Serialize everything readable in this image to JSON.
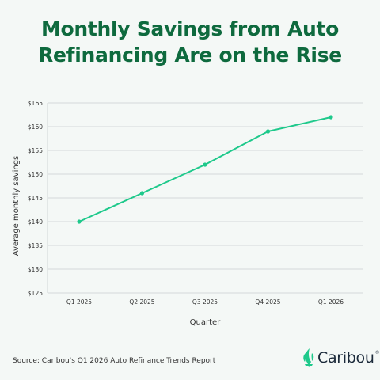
{
  "title": {
    "line1": "Monthly Savings from Auto",
    "line2": "Refinancing Are on the Rise"
  },
  "source": "Source: Caribou's Q1 2026 Auto Refinance Trends Report",
  "brand": {
    "name": "Caribou",
    "mark": "®"
  },
  "colors": {
    "title": "#0e6a3e",
    "line": "#1ec98b",
    "grid": "#c8cdd0",
    "brand_icon": "#1ec98b"
  },
  "chart_data": {
    "type": "line",
    "categories": [
      "Q1 2025",
      "Q2 2025",
      "Q3 2025",
      "Q4 2025",
      "Q1 2026"
    ],
    "series": [
      {
        "values": [
          140,
          146,
          152,
          159,
          162
        ]
      }
    ],
    "xlabel": "Quarter",
    "ylabel": "Average monthly savings",
    "ylim": [
      125,
      165
    ],
    "yticks": [
      125,
      130,
      135,
      140,
      145,
      150,
      155,
      160,
      165
    ],
    "ytick_labels": [
      "$125",
      "$130",
      "$135",
      "$140",
      "$145",
      "$150",
      "$155",
      "$160",
      "$165"
    ],
    "grid": true,
    "legend": "none"
  }
}
